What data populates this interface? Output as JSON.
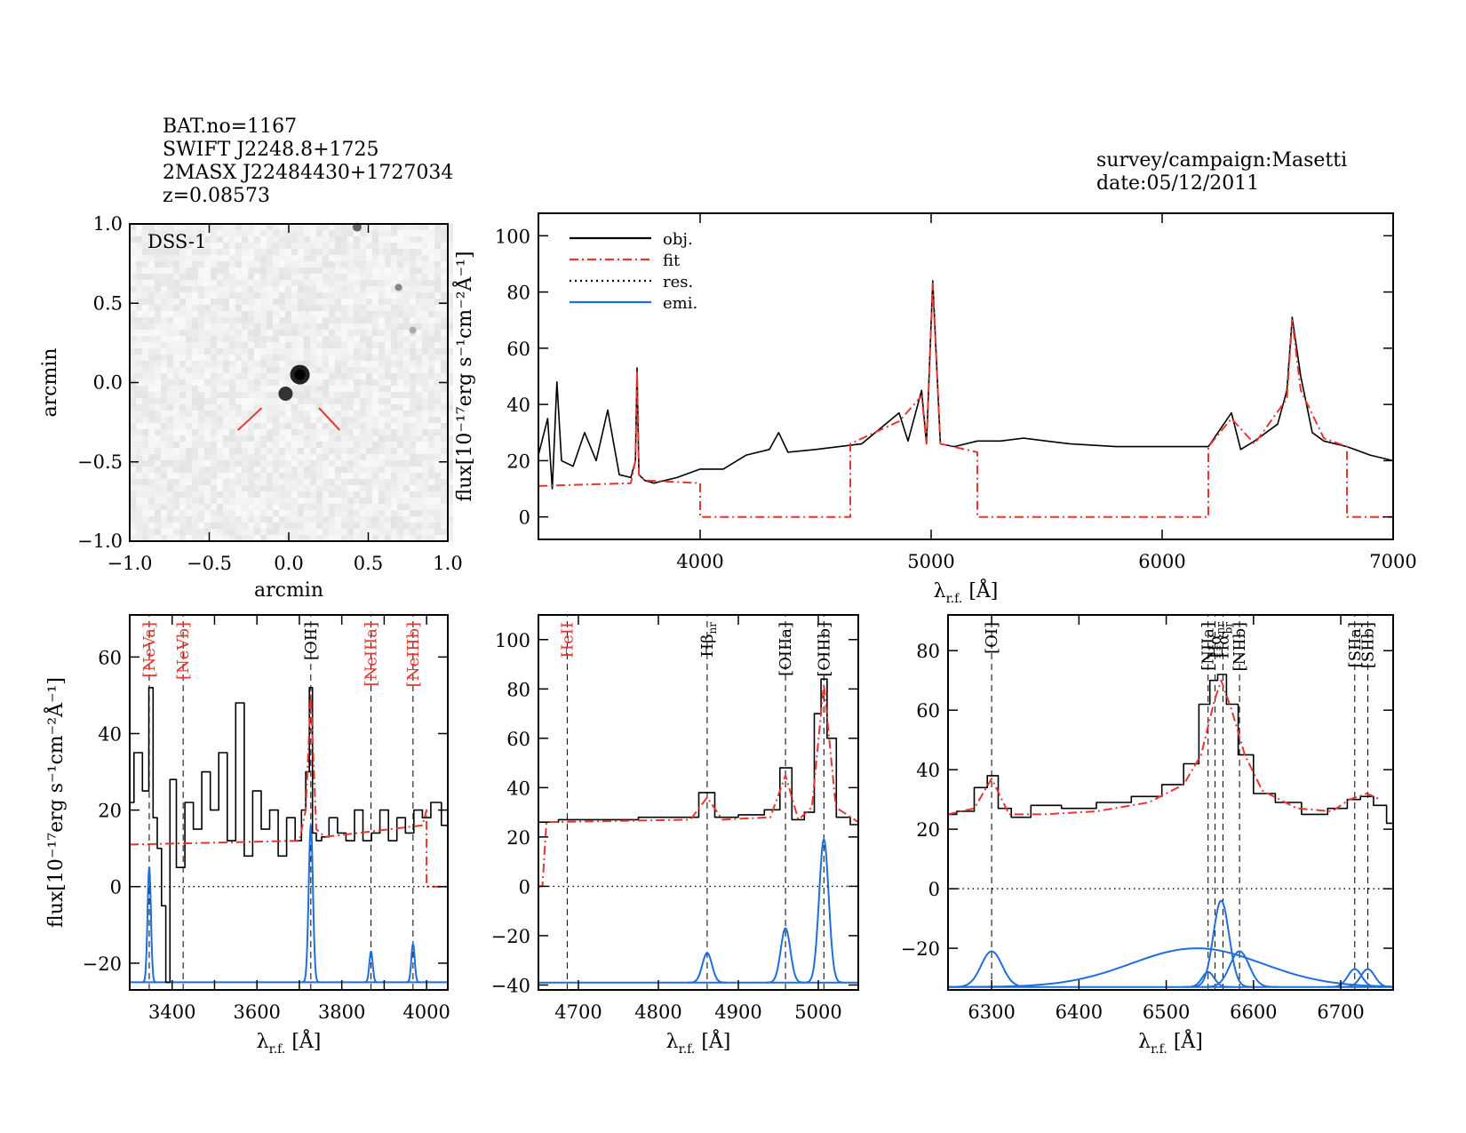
{
  "header": {
    "lines": [
      "BAT.no=1167",
      "SWIFT J2248.8+1725",
      "2MASX J22484430+1727034",
      "z=0.08573"
    ],
    "survey": "survey/campaign:Masetti",
    "date": "date:05/12/2011"
  },
  "image_panel": {
    "label": "DSS-1",
    "xlabel": "arcmin",
    "ylabel": "arcmin",
    "xlim": [
      -1.0,
      1.0
    ],
    "ylim": [
      -1.0,
      1.0
    ],
    "xticks": [
      "−1.0",
      "−0.5",
      "0.0",
      "0.5",
      "1.0"
    ],
    "yticks": [
      "1.0",
      "0.5",
      "0.0",
      "−0.5",
      "−1.0"
    ]
  },
  "chart_data": [
    {
      "type": "line",
      "id": "main",
      "xlabel": "λ",
      "xlabel_sub": "r.f.",
      "xlabel_unit": "[Å]",
      "ylabel": "flux[10⁻¹⁷erg s⁻¹cm⁻²Å⁻¹]",
      "xlim": [
        3300,
        7000
      ],
      "ylim": [
        -8,
        108
      ],
      "xticks": [
        4000,
        5000,
        6000,
        7000
      ],
      "yticks": [
        0,
        20,
        40,
        60,
        80,
        100
      ],
      "legend": {
        "placement": "top-left",
        "entries": [
          {
            "label": "obj.",
            "color": "#000000",
            "style": "solid"
          },
          {
            "label": "fit",
            "color": "#e8352e",
            "style": "dashdot"
          },
          {
            "label": "res.",
            "color": "#000000",
            "style": "dotted"
          },
          {
            "label": "emi.",
            "color": "#1f6fd9",
            "style": "solid"
          }
        ]
      },
      "series": [
        {
          "name": "obj.",
          "color": "#000000",
          "x": [
            3300,
            3340,
            3360,
            3380,
            3400,
            3450,
            3500,
            3550,
            3600,
            3650,
            3700,
            3720,
            3727,
            3735,
            3760,
            3800,
            3900,
            4000,
            4100,
            4200,
            4300,
            4340,
            4380,
            4500,
            4700,
            4861,
            4900,
            4959,
            4980,
            5007,
            5040,
            5100,
            5200,
            5300,
            5400,
            5500,
            5600,
            5800,
            6000,
            6200,
            6300,
            6340,
            6400,
            6500,
            6540,
            6563,
            6600,
            6650,
            6700,
            6800,
            6900,
            7000
          ],
          "y": [
            22,
            35,
            10,
            48,
            20,
            18,
            30,
            20,
            38,
            15,
            14,
            20,
            53,
            15,
            13,
            12,
            14,
            17,
            17,
            22,
            24,
            30,
            23,
            24,
            26,
            37,
            27,
            45,
            26,
            84,
            26,
            25,
            27,
            27,
            28,
            27,
            26,
            25,
            25,
            25,
            37,
            24,
            27,
            33,
            45,
            71,
            50,
            30,
            27,
            25,
            22,
            20
          ]
        },
        {
          "name": "fit",
          "color": "#e8352e",
          "x": [
            3300,
            3700,
            3720,
            3727,
            3735,
            3760,
            4000,
            4000,
            4650,
            4650,
            4861,
            4959,
            4980,
            5007,
            5040,
            5200,
            5200,
            6200,
            6200,
            6300,
            6400,
            6540,
            6563,
            6600,
            6700,
            6800,
            6800,
            7000
          ],
          "y": [
            11,
            12,
            20,
            52,
            15,
            13,
            12,
            0,
            0,
            26,
            34,
            43,
            26,
            83,
            26,
            23,
            0,
            0,
            25,
            35,
            26,
            42,
            70,
            45,
            28,
            25,
            0,
            0
          ]
        }
      ]
    },
    {
      "type": "line",
      "id": "panel-a",
      "xlabel": "λ",
      "xlabel_sub": "r.f.",
      "xlabel_unit": "[Å]",
      "ylabel": "flux[10⁻¹⁷erg s⁻¹cm⁻²Å⁻¹]",
      "xlim": [
        3300,
        4050
      ],
      "ylim": [
        -27,
        71
      ],
      "xticks": [
        3400,
        3500,
        3600,
        3700,
        3800,
        3900,
        4000
      ],
      "xtick_labels": [
        3400,
        3600,
        3800,
        4000
      ],
      "yticks": [
        -20,
        0,
        20,
        40,
        60
      ],
      "lines": [
        {
          "name": "[NeVa]",
          "x": 3346,
          "color": "#e8352e"
        },
        {
          "name": "[NeVb]",
          "x": 3426,
          "color": "#e8352e"
        },
        {
          "name": "[OII]",
          "x": 3727,
          "color": "#000000"
        },
        {
          "name": "[NeIIIa]",
          "x": 3869,
          "color": "#e8352e"
        },
        {
          "name": "[NeIIIb]",
          "x": 3968,
          "color": "#e8352e"
        }
      ],
      "series": [
        {
          "name": "obj.",
          "color": "#000000",
          "x": [
            3300,
            3320,
            3340,
            3350,
            3360,
            3370,
            3380,
            3390,
            3400,
            3420,
            3440,
            3460,
            3480,
            3500,
            3520,
            3540,
            3560,
            3580,
            3600,
            3620,
            3640,
            3660,
            3680,
            3700,
            3710,
            3720,
            3727,
            3735,
            3745,
            3760,
            3780,
            3800,
            3820,
            3840,
            3860,
            3880,
            3900,
            3920,
            3940,
            3960,
            3980,
            4000,
            4020,
            4050
          ],
          "y": [
            22,
            35,
            25,
            52,
            18,
            10,
            -5,
            -25,
            28,
            5,
            22,
            15,
            30,
            20,
            35,
            12,
            48,
            8,
            25,
            15,
            20,
            8,
            18,
            12,
            20,
            30,
            52,
            14,
            12,
            13,
            18,
            14,
            12,
            20,
            12,
            14,
            20,
            12,
            18,
            14,
            20,
            18,
            22,
            16
          ]
        },
        {
          "name": "fit",
          "color": "#e8352e",
          "x": [
            3300,
            3700,
            3715,
            3727,
            3740,
            3760,
            3990,
            4000,
            4000,
            4050
          ],
          "y": [
            11,
            12,
            20,
            50,
            15,
            13,
            16,
            20,
            0,
            0
          ]
        },
        {
          "name": "res.",
          "color": "#000000",
          "style": "dotted",
          "x": [
            3300,
            4050
          ],
          "y": [
            0,
            0
          ]
        }
      ],
      "emission": [
        {
          "center": 3346,
          "amp": 30,
          "sigma": 4
        },
        {
          "center": 3727,
          "amp": 41,
          "sigma": 5
        },
        {
          "center": 3869,
          "amp": 8,
          "sigma": 4
        },
        {
          "center": 3968,
          "amp": 10,
          "sigma": 4
        }
      ],
      "emission_base": -25
    },
    {
      "type": "line",
      "id": "panel-b",
      "xlabel": "λ",
      "xlabel_sub": "r.f.",
      "xlabel_unit": "[Å]",
      "xlim": [
        4650,
        5050
      ],
      "ylim": [
        -42,
        110
      ],
      "xticks": [
        4700,
        4800,
        4900,
        5000
      ],
      "yticks": [
        -40,
        -20,
        0,
        20,
        40,
        60,
        80,
        100
      ],
      "lines": [
        {
          "name": "HeII",
          "x": 4686,
          "color": "#e8352e"
        },
        {
          "name": "Hβ",
          "x": 4861,
          "color": "#000000",
          "sub": "nr"
        },
        {
          "name": "[OIIIa]",
          "x": 4959,
          "color": "#000000"
        },
        {
          "name": "[OIIIb]",
          "x": 5007,
          "color": "#000000"
        }
      ],
      "series": [
        {
          "name": "obj.",
          "color": "#000000",
          "x": [
            4650,
            4700,
            4750,
            4800,
            4840,
            4861,
            4880,
            4920,
            4945,
            4959,
            4975,
            4990,
            5000,
            5007,
            5015,
            5030,
            5050
          ],
          "y": [
            26,
            27,
            27,
            28,
            28,
            38,
            28,
            29,
            31,
            48,
            27,
            30,
            70,
            84,
            60,
            28,
            25
          ]
        },
        {
          "name": "fit",
          "color": "#e8352e",
          "x": [
            4650,
            4655,
            4660,
            4840,
            4861,
            4880,
            4940,
            4959,
            4975,
            4992,
            5007,
            5022,
            5050
          ],
          "y": [
            0,
            0,
            26,
            27,
            36,
            27,
            28,
            45,
            27,
            32,
            82,
            32,
            26
          ]
        },
        {
          "name": "res.",
          "color": "#000000",
          "style": "dotted",
          "x": [
            4650,
            5050
          ],
          "y": [
            0,
            0
          ]
        }
      ],
      "emission": [
        {
          "center": 4861,
          "amp": 12,
          "sigma": 6
        },
        {
          "center": 4959,
          "amp": 22,
          "sigma": 6
        },
        {
          "center": 5007,
          "amp": 58,
          "sigma": 6
        }
      ],
      "emission_base": -39
    },
    {
      "type": "line",
      "id": "panel-c",
      "xlabel": "λ",
      "xlabel_sub": "r.f.",
      "xlabel_unit": "[Å]",
      "xlim": [
        6250,
        6760
      ],
      "ylim": [
        -34,
        92
      ],
      "xticks": [
        6300,
        6400,
        6500,
        6600,
        6700
      ],
      "yticks": [
        -20,
        0,
        20,
        40,
        60,
        80
      ],
      "lines": [
        {
          "name": "[OI]",
          "x": 6300,
          "color": "#000000"
        },
        {
          "name": "[NIIa]",
          "x": 6548,
          "color": "#000000"
        },
        {
          "name": "Hα",
          "x": 6556,
          "color": "#000000",
          "sub": "nr"
        },
        {
          "name": "Hα",
          "x": 6565,
          "color": "#000000",
          "sub": "br"
        },
        {
          "name": "[NIIb]",
          "x": 6584,
          "color": "#000000"
        },
        {
          "name": "[SIIa]",
          "x": 6716,
          "color": "#000000"
        },
        {
          "name": "[SIIb]",
          "x": 6731,
          "color": "#000000"
        }
      ],
      "series": [
        {
          "name": "obj.",
          "color": "#000000",
          "x": [
            6250,
            6270,
            6290,
            6300,
            6315,
            6330,
            6360,
            6400,
            6440,
            6480,
            6510,
            6530,
            6545,
            6555,
            6563,
            6575,
            6590,
            6610,
            6640,
            6670,
            6700,
            6715,
            6730,
            6745,
            6760
          ],
          "y": [
            25,
            26,
            34,
            38,
            27,
            24,
            28,
            27,
            29,
            31,
            35,
            42,
            62,
            70,
            72,
            62,
            45,
            32,
            29,
            25,
            27,
            30,
            31,
            28,
            22
          ]
        },
        {
          "name": "fit",
          "color": "#e8352e",
          "x": [
            6250,
            6280,
            6300,
            6320,
            6360,
            6420,
            6480,
            6520,
            6540,
            6555,
            6563,
            6575,
            6590,
            6610,
            6650,
            6690,
            6710,
            6730,
            6745
          ],
          "y": [
            25,
            27,
            37,
            25,
            25,
            26,
            29,
            35,
            45,
            63,
            70,
            60,
            45,
            33,
            27,
            26,
            30,
            32,
            30
          ]
        },
        {
          "name": "res.",
          "color": "#000000",
          "style": "dotted",
          "x": [
            6250,
            6760
          ],
          "y": [
            0,
            0
          ]
        }
      ],
      "emission": [
        {
          "center": 6300,
          "amp": 12,
          "sigma": 12
        },
        {
          "center": 6535,
          "amp": 13,
          "sigma": 75
        },
        {
          "center": 6548,
          "amp": 5,
          "sigma": 7
        },
        {
          "center": 6563,
          "amp": 29,
          "sigma": 9
        },
        {
          "center": 6584,
          "amp": 12,
          "sigma": 11
        },
        {
          "center": 6716,
          "amp": 6,
          "sigma": 8
        },
        {
          "center": 6731,
          "amp": 6,
          "sigma": 8
        }
      ],
      "emission_base": -33
    }
  ],
  "colors": {
    "obj": "#000000",
    "fit": "#e8352e",
    "emi": "#1f6fd9",
    "dss_red": "#e8352e"
  }
}
